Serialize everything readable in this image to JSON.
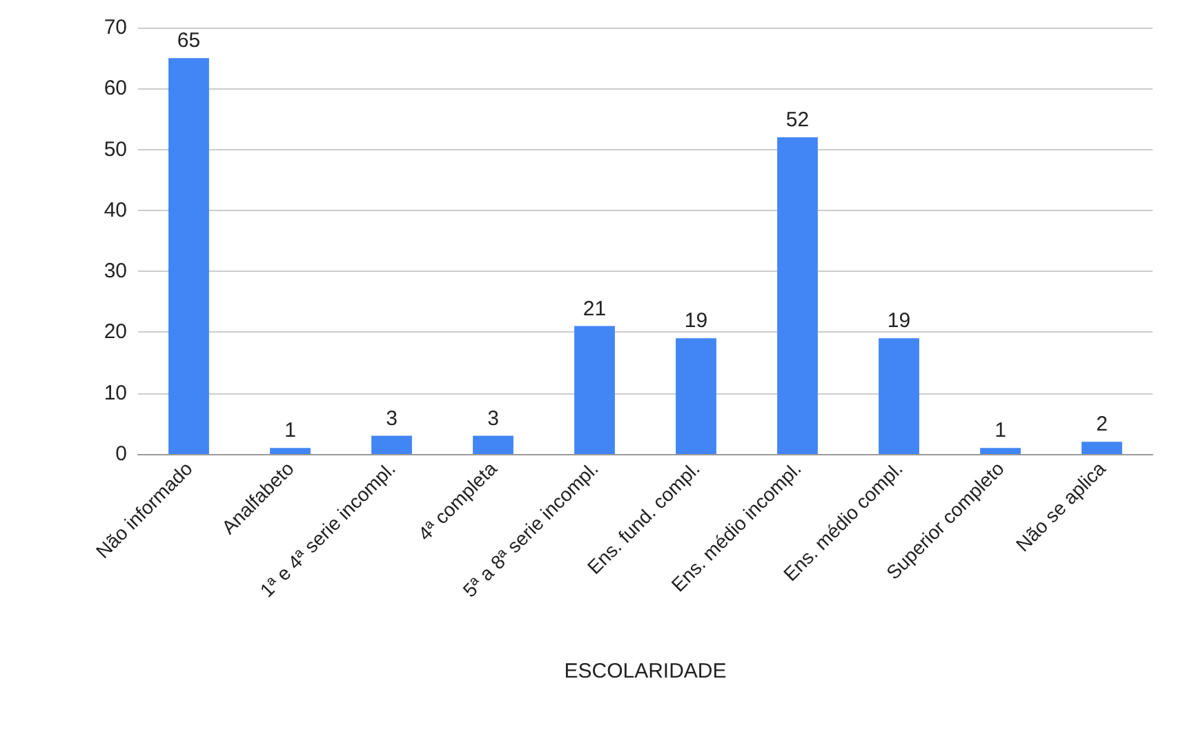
{
  "chart_data": {
    "type": "bar",
    "xlabel": "ESCOLARIDADE",
    "categories": [
      "Não informado",
      "Analfabeto",
      "1ª e 4ª serie incompl.",
      "4ª completa",
      "5ª a 8ª serie incompl.",
      "Ens. fund. compl.",
      "Ens. médio incompl.",
      "Ens. médio compl.",
      "Superior completo",
      "Não se aplica"
    ],
    "values": [
      65,
      1,
      3,
      3,
      21,
      19,
      52,
      19,
      1,
      2
    ],
    "color": "#4285f4",
    "ylim": [
      0,
      70
    ],
    "yticks": [
      0,
      10,
      20,
      30,
      40,
      50,
      60,
      70
    ],
    "grid": "y",
    "data_labels": true
  }
}
